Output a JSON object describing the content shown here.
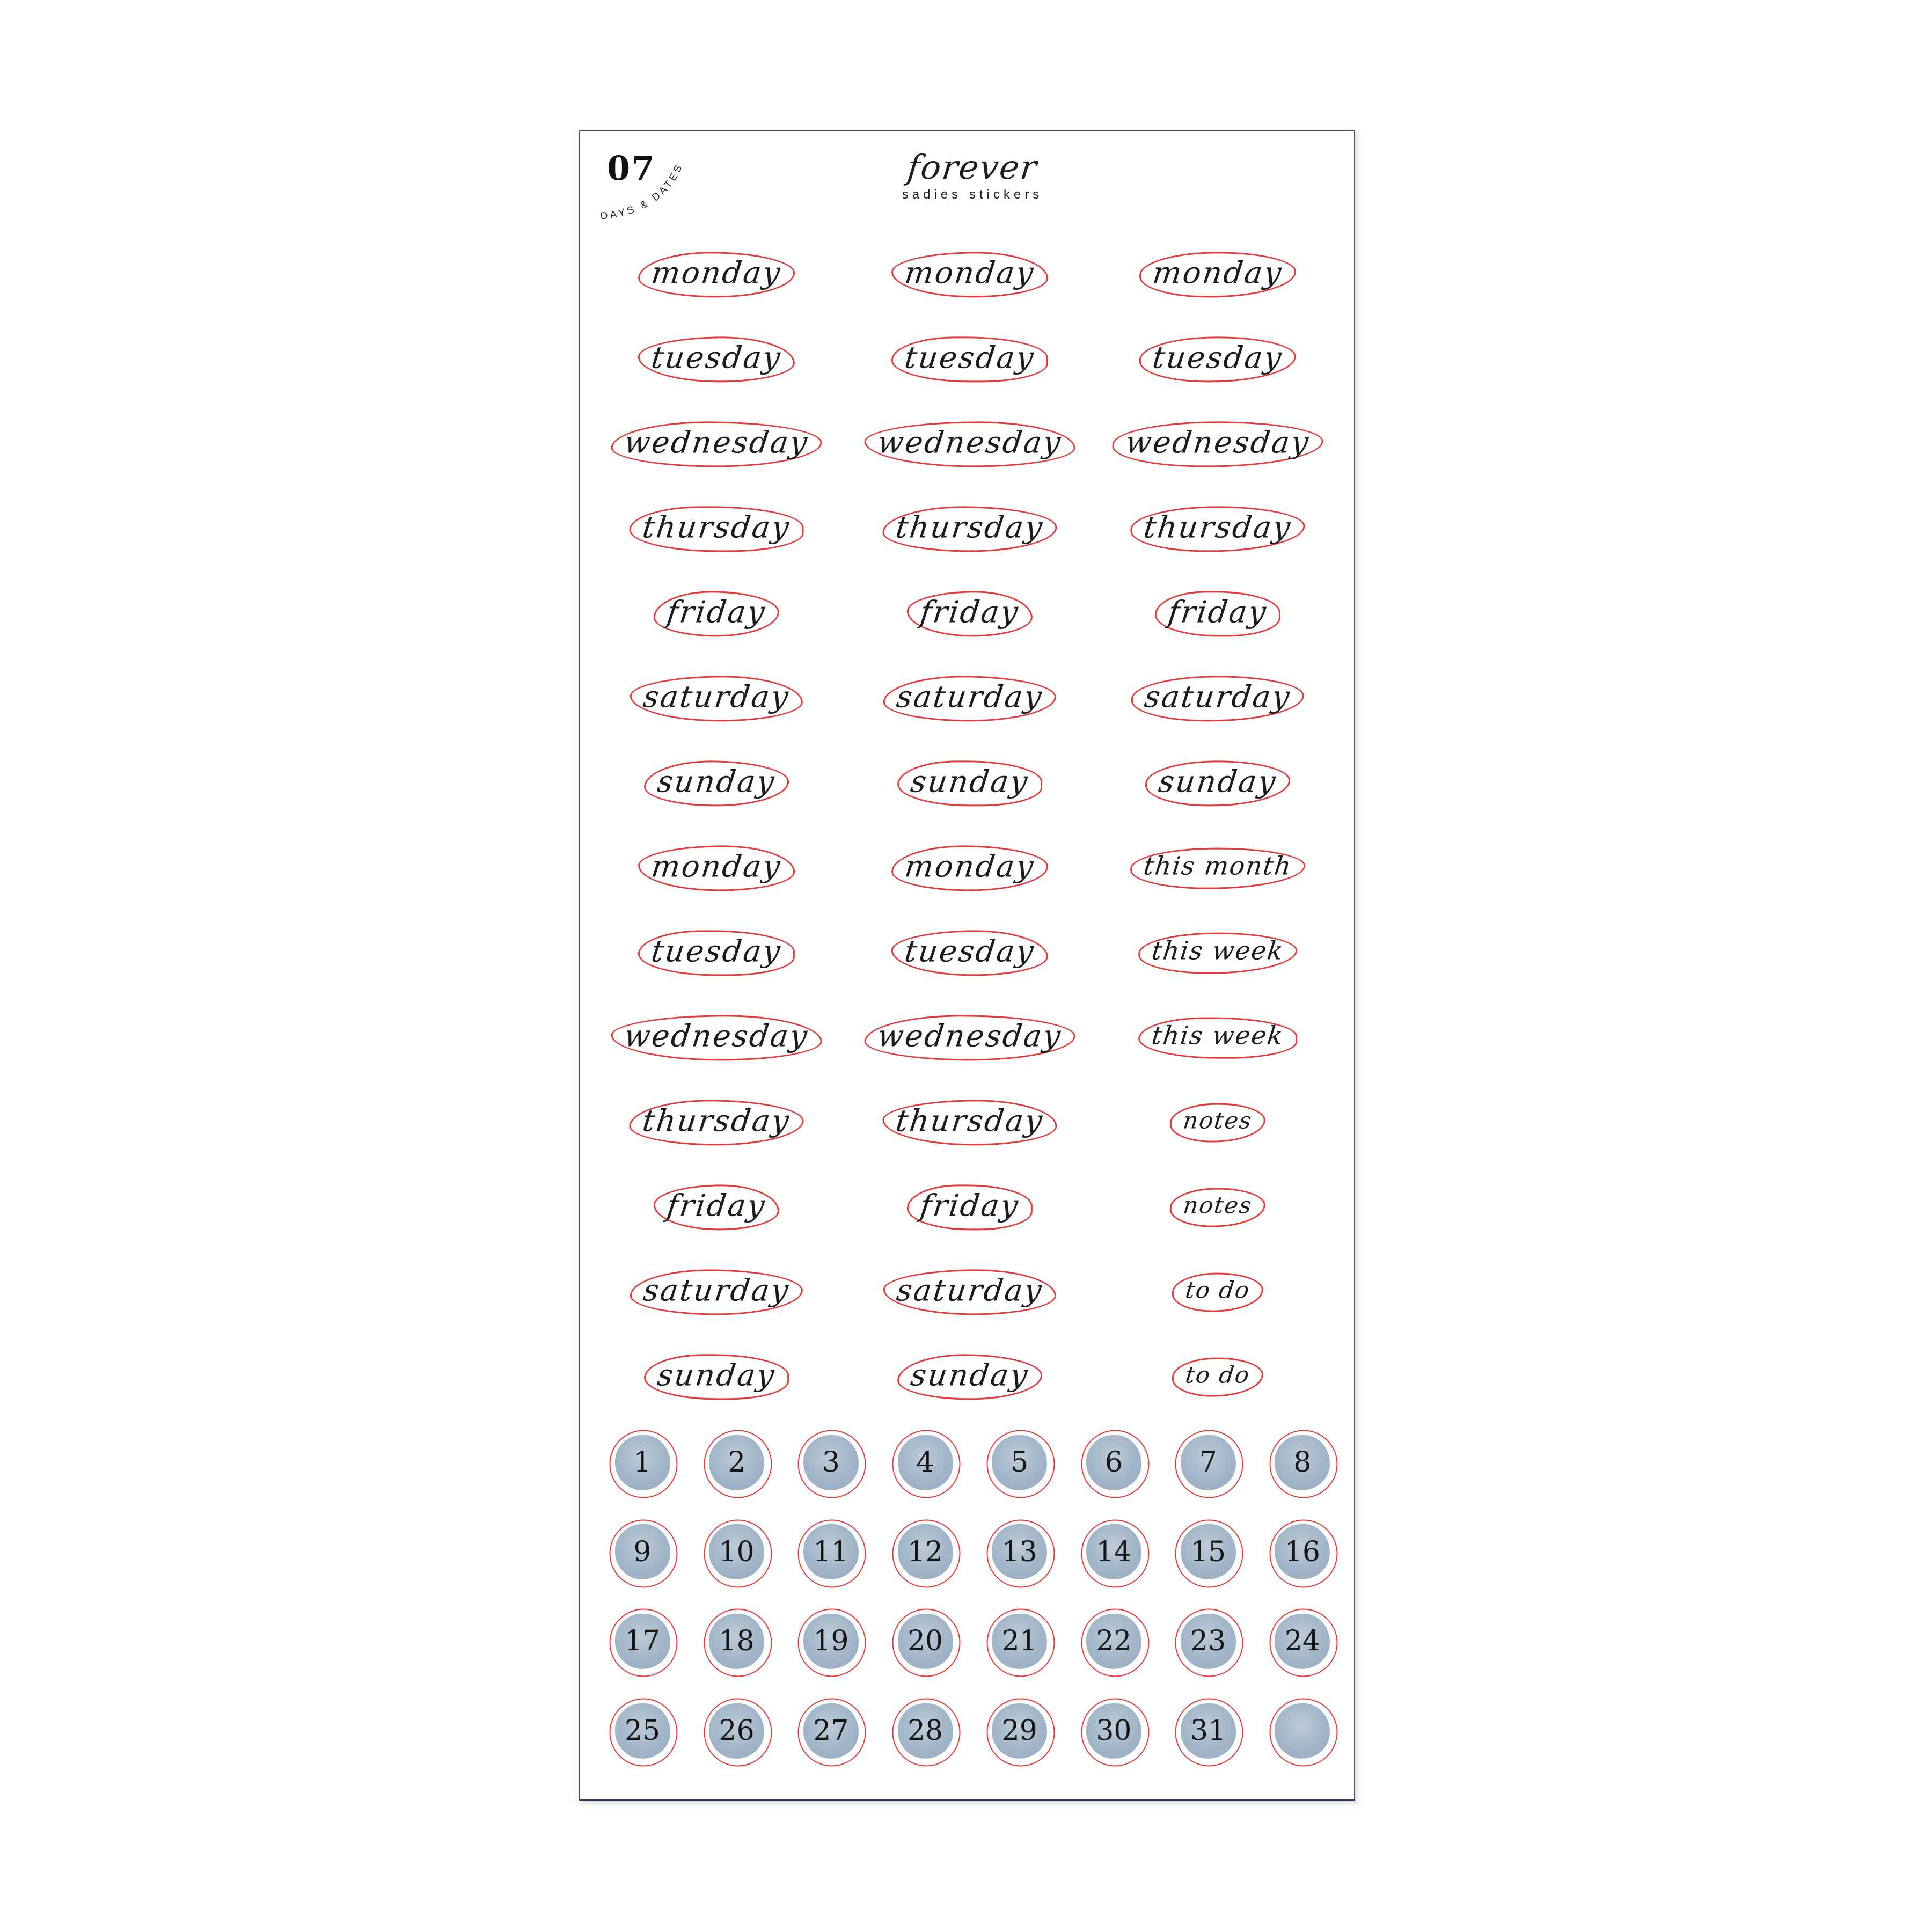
{
  "page": {
    "background": "#ffffff"
  },
  "sheet": {
    "badge": {
      "number": "07",
      "arc_label": "DAYS & DATES"
    },
    "brand": {
      "name": "forever",
      "subtitle": "sadies stickers"
    },
    "word_rows": [
      [
        "monday",
        "monday",
        "monday"
      ],
      [
        "tuesday",
        "tuesday",
        "tuesday"
      ],
      [
        "wednesday",
        "wednesday",
        "wednesday"
      ],
      [
        "thursday",
        "thursday",
        "thursday"
      ],
      [
        "friday",
        "friday",
        "friday"
      ],
      [
        "saturday",
        "saturday",
        "saturday"
      ],
      [
        "sunday",
        "sunday",
        "sunday"
      ],
      [
        "monday",
        "monday",
        "this month"
      ],
      [
        "tuesday",
        "tuesday",
        "this week"
      ],
      [
        "wednesday",
        "wednesday",
        "this week"
      ],
      [
        "thursday",
        "thursday",
        "notes"
      ],
      [
        "friday",
        "friday",
        "notes"
      ],
      [
        "saturday",
        "saturday",
        "to do"
      ],
      [
        "sunday",
        "sunday",
        "to do"
      ]
    ],
    "date_circles": {
      "numbers": [
        1,
        2,
        3,
        4,
        5,
        6,
        7,
        8,
        9,
        10,
        11,
        12,
        13,
        14,
        15,
        16,
        17,
        18,
        19,
        20,
        21,
        22,
        23,
        24,
        25,
        26,
        27,
        28,
        29,
        30,
        31
      ],
      "blank_count": 1
    },
    "colors": {
      "outline_red": "#e43b3a",
      "ink": "#1b1b1d",
      "circle_blue": "#a7b7c9",
      "circle_blue_light": "#c0ccd9",
      "sheet_border": "#484d5f"
    }
  }
}
